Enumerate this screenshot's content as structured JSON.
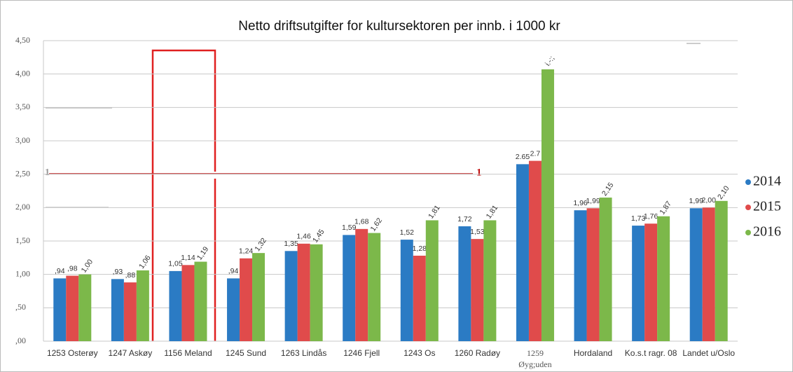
{
  "chart_data": {
    "type": "bar",
    "title": "Netto driftsutgifter for kultursektoren per innb. i 1000 kr",
    "categories": [
      "1253 Osterøy",
      "1247 Askøy",
      "1156 Meland",
      "1245 Sund",
      "1263 Lindås",
      "1246 Fjell",
      "1243 Os",
      "1260 Radøy",
      "1259 Øyg;uden",
      "Hordaland",
      "Ko.s.t ragr. 08",
      "Landet u/Oslo"
    ],
    "series": [
      {
        "name": "2014",
        "color": "#2b7bc4",
        "values": [
          0.94,
          0.93,
          1.05,
          0.94,
          1.35,
          1.59,
          1.52,
          1.72,
          2.65,
          1.96,
          1.73,
          1.99
        ],
        "value_labels": [
          ",94",
          ",93",
          "1,05",
          ",94",
          "1,35",
          "1,59",
          "1,52",
          "1,72",
          "2.65",
          "1,96",
          "1,73",
          "1,99"
        ]
      },
      {
        "name": "2015",
        "color": "#e04b4b",
        "values": [
          0.98,
          0.88,
          1.14,
          1.24,
          1.46,
          1.68,
          1.28,
          1.53,
          2.7,
          1.99,
          1.76,
          2.0
        ],
        "value_labels": [
          ",98",
          ",88",
          "1,14",
          "1,24",
          "1,46",
          "1,68",
          "1,28",
          "1,53",
          "2.7",
          "1,99",
          "1,76",
          "2,00"
        ]
      },
      {
        "name": "2016",
        "color": "#7cb84a",
        "values": [
          1.0,
          1.06,
          1.19,
          1.32,
          1.45,
          1.62,
          1.81,
          1.81,
          4.07,
          2.15,
          1.87,
          2.1
        ],
        "value_labels": [
          "1,00",
          "1,06",
          "1,19",
          "1,32",
          "1,45",
          "1,62",
          "1,81",
          "1,81",
          "i.-:;",
          "2,15",
          "1,87",
          "2,10"
        ]
      }
    ],
    "ylim": [
      0,
      4.5
    ],
    "yticks": [
      {
        "value": 0,
        "label": ",00"
      },
      {
        "value": 0.5,
        "label": ",50"
      },
      {
        "value": 1,
        "label": "1,00"
      },
      {
        "value": 1.5,
        "label": "1,50"
      },
      {
        "value": 2,
        "label": "2,00"
      },
      {
        "value": 2.5,
        "label": "2,50"
      },
      {
        "value": 3,
        "label": "3,00"
      },
      {
        "value": 3.5,
        "label": "3,50"
      },
      {
        "value": 4,
        "label": "4,00"
      },
      {
        "value": 4.5,
        "label": "4,50"
      }
    ],
    "grid": true,
    "legend": "right",
    "annotations": [
      "1",
      "1"
    ]
  }
}
